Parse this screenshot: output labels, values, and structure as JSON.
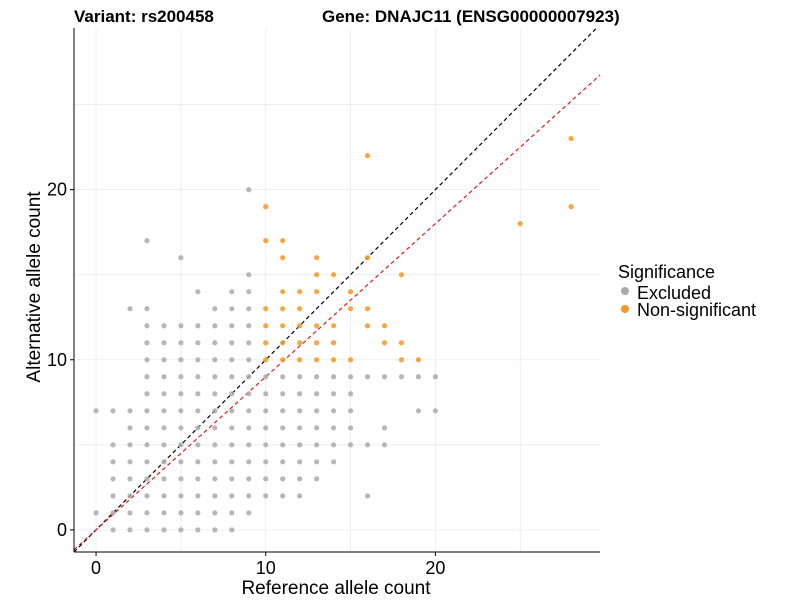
{
  "chart_data": {
    "type": "scatter",
    "title_left": "Variant: rs200458",
    "title_right": "Gene: DNAJC11 (ENSG00000007923)",
    "xlabel": "Reference allele count",
    "ylabel": "Alternative allele count",
    "xlim": [
      -1.3,
      29.7
    ],
    "ylim": [
      -1.3,
      29.5
    ],
    "x_ticks": [
      0,
      10,
      20
    ],
    "y_ticks": [
      0,
      10,
      20
    ],
    "grid": true,
    "legend": {
      "title": "Significance",
      "position": "right",
      "entries": [
        {
          "label": "Excluded",
          "color": "#aaaaaa"
        },
        {
          "label": "Non-significant",
          "color": "#f7961d"
        }
      ]
    },
    "reference_lines": [
      {
        "name": "identity",
        "slope": 1,
        "intercept": 0,
        "color": "#000000",
        "dash": true
      },
      {
        "name": "fit",
        "slope": 0.9,
        "intercept": 0,
        "color": "#e41a1c",
        "dash": true
      }
    ],
    "series": [
      {
        "name": "Excluded",
        "color": "#aaaaaa",
        "points": [
          [
            0,
            1
          ],
          [
            0,
            7
          ],
          [
            1,
            0
          ],
          [
            1,
            1
          ],
          [
            1,
            2
          ],
          [
            1,
            3
          ],
          [
            1,
            4
          ],
          [
            1,
            5
          ],
          [
            1,
            7
          ],
          [
            2,
            0
          ],
          [
            2,
            1
          ],
          [
            2,
            2
          ],
          [
            2,
            3
          ],
          [
            2,
            4
          ],
          [
            2,
            5
          ],
          [
            2,
            6
          ],
          [
            2,
            7
          ],
          [
            2,
            13
          ],
          [
            3,
            0
          ],
          [
            3,
            1
          ],
          [
            3,
            2
          ],
          [
            3,
            3
          ],
          [
            3,
            4
          ],
          [
            3,
            5
          ],
          [
            3,
            6
          ],
          [
            3,
            7
          ],
          [
            3,
            8
          ],
          [
            3,
            9
          ],
          [
            3,
            10
          ],
          [
            3,
            11
          ],
          [
            3,
            12
          ],
          [
            3,
            13
          ],
          [
            3,
            17
          ],
          [
            4,
            0
          ],
          [
            4,
            1
          ],
          [
            4,
            2
          ],
          [
            4,
            3
          ],
          [
            4,
            4
          ],
          [
            4,
            5
          ],
          [
            4,
            6
          ],
          [
            4,
            7
          ],
          [
            4,
            8
          ],
          [
            4,
            9
          ],
          [
            4,
            10
          ],
          [
            4,
            11
          ],
          [
            4,
            12
          ],
          [
            5,
            0
          ],
          [
            5,
            1
          ],
          [
            5,
            2
          ],
          [
            5,
            3
          ],
          [
            5,
            4
          ],
          [
            5,
            5
          ],
          [
            5,
            6
          ],
          [
            5,
            7
          ],
          [
            5,
            8
          ],
          [
            5,
            9
          ],
          [
            5,
            10
          ],
          [
            5,
            11
          ],
          [
            5,
            12
          ],
          [
            5,
            16
          ],
          [
            6,
            0
          ],
          [
            6,
            1
          ],
          [
            6,
            2
          ],
          [
            6,
            3
          ],
          [
            6,
            4
          ],
          [
            6,
            5
          ],
          [
            6,
            6
          ],
          [
            6,
            7
          ],
          [
            6,
            8
          ],
          [
            6,
            9
          ],
          [
            6,
            10
          ],
          [
            6,
            11
          ],
          [
            6,
            12
          ],
          [
            6,
            14
          ],
          [
            7,
            0
          ],
          [
            7,
            1
          ],
          [
            7,
            2
          ],
          [
            7,
            3
          ],
          [
            7,
            4
          ],
          [
            7,
            5
          ],
          [
            7,
            6
          ],
          [
            7,
            7
          ],
          [
            7,
            8
          ],
          [
            7,
            9
          ],
          [
            7,
            10
          ],
          [
            7,
            11
          ],
          [
            7,
            12
          ],
          [
            7,
            13
          ],
          [
            8,
            0
          ],
          [
            8,
            1
          ],
          [
            8,
            2
          ],
          [
            8,
            3
          ],
          [
            8,
            4
          ],
          [
            8,
            5
          ],
          [
            8,
            6
          ],
          [
            8,
            7
          ],
          [
            8,
            8
          ],
          [
            8,
            9
          ],
          [
            8,
            10
          ],
          [
            8,
            11
          ],
          [
            8,
            12
          ],
          [
            8,
            13
          ],
          [
            8,
            14
          ],
          [
            9,
            1
          ],
          [
            9,
            2
          ],
          [
            9,
            3
          ],
          [
            9,
            4
          ],
          [
            9,
            5
          ],
          [
            9,
            6
          ],
          [
            9,
            7
          ],
          [
            9,
            8
          ],
          [
            9,
            9
          ],
          [
            9,
            10
          ],
          [
            9,
            11
          ],
          [
            9,
            12
          ],
          [
            9,
            13
          ],
          [
            9,
            14
          ],
          [
            9,
            15
          ],
          [
            9,
            20
          ],
          [
            10,
            2
          ],
          [
            10,
            3
          ],
          [
            10,
            4
          ],
          [
            10,
            5
          ],
          [
            10,
            6
          ],
          [
            10,
            7
          ],
          [
            10,
            8
          ],
          [
            10,
            9
          ],
          [
            11,
            2
          ],
          [
            11,
            3
          ],
          [
            11,
            4
          ],
          [
            11,
            5
          ],
          [
            11,
            6
          ],
          [
            11,
            7
          ],
          [
            11,
            8
          ],
          [
            11,
            9
          ],
          [
            12,
            2
          ],
          [
            12,
            3
          ],
          [
            12,
            4
          ],
          [
            12,
            5
          ],
          [
            12,
            6
          ],
          [
            12,
            7
          ],
          [
            12,
            8
          ],
          [
            12,
            9
          ],
          [
            13,
            3
          ],
          [
            13,
            4
          ],
          [
            13,
            5
          ],
          [
            13,
            6
          ],
          [
            13,
            7
          ],
          [
            13,
            8
          ],
          [
            13,
            9
          ],
          [
            14,
            4
          ],
          [
            14,
            5
          ],
          [
            14,
            6
          ],
          [
            14,
            7
          ],
          [
            14,
            8
          ],
          [
            14,
            9
          ],
          [
            15,
            5
          ],
          [
            15,
            6
          ],
          [
            15,
            7
          ],
          [
            15,
            8
          ],
          [
            15,
            9
          ],
          [
            16,
            2
          ],
          [
            16,
            5
          ],
          [
            16,
            9
          ],
          [
            17,
            5
          ],
          [
            17,
            6
          ],
          [
            17,
            9
          ],
          [
            18,
            9
          ],
          [
            19,
            7
          ],
          [
            19,
            9
          ],
          [
            20,
            7
          ],
          [
            20,
            9
          ]
        ]
      },
      {
        "name": "Non-significant",
        "color": "#f7961d",
        "points": [
          [
            10,
            10
          ],
          [
            10,
            11
          ],
          [
            10,
            12
          ],
          [
            10,
            13
          ],
          [
            10,
            17
          ],
          [
            10,
            19
          ],
          [
            11,
            10
          ],
          [
            11,
            11
          ],
          [
            11,
            12
          ],
          [
            11,
            13
          ],
          [
            11,
            14
          ],
          [
            11,
            16
          ],
          [
            11,
            17
          ],
          [
            12,
            10
          ],
          [
            12,
            11
          ],
          [
            12,
            12
          ],
          [
            12,
            13
          ],
          [
            12,
            14
          ],
          [
            13,
            10
          ],
          [
            13,
            11
          ],
          [
            13,
            12
          ],
          [
            13,
            14
          ],
          [
            13,
            15
          ],
          [
            13,
            16
          ],
          [
            14,
            10
          ],
          [
            14,
            11
          ],
          [
            14,
            12
          ],
          [
            14,
            15
          ],
          [
            15,
            10
          ],
          [
            15,
            13
          ],
          [
            15,
            14
          ],
          [
            16,
            12
          ],
          [
            16,
            13
          ],
          [
            16,
            16
          ],
          [
            16,
            22
          ],
          [
            17,
            11
          ],
          [
            17,
            12
          ],
          [
            18,
            10
          ],
          [
            18,
            11
          ],
          [
            18,
            15
          ],
          [
            19,
            10
          ],
          [
            25,
            18
          ],
          [
            28,
            19
          ],
          [
            28,
            23
          ]
        ]
      }
    ]
  }
}
